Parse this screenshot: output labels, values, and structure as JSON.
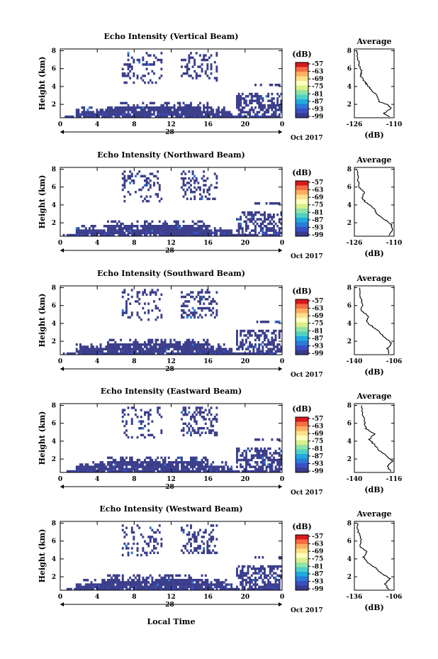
{
  "figure": {
    "x_axis_label": "Local Time",
    "date_label": "Oct 2017",
    "day_label": "28",
    "profile_title": "Average",
    "colorbar_unit": "(dB)",
    "profile_unit": "(dB)",
    "colorbar": {
      "ticks": [
        "-57",
        "-63",
        "-69",
        "-75",
        "-81",
        "-87",
        "-93",
        "-99"
      ],
      "colors": [
        "#d7191c",
        "#f46d43",
        "#fdae61",
        "#fee08b",
        "#ffffbf",
        "#d9ef8b",
        "#91e3a8",
        "#4fd1c5",
        "#21a9e0",
        "#2b7bd6",
        "#3a4fc4",
        "#3a3a8c"
      ]
    },
    "main_color": "#3c3f8c"
  },
  "chart_data": [
    {
      "type": "heatmap",
      "title": "Echo Intensity (Vertical Beam)",
      "ylabel": "Height (km)",
      "x_ticks": [
        "0",
        "4",
        "8",
        "12",
        "16",
        "20",
        "0"
      ],
      "y_ticks": [
        "2",
        "4",
        "6",
        "8"
      ],
      "xlim": [
        0,
        24
      ],
      "ylim": [
        0.5,
        8.2
      ],
      "profile": {
        "xlim": [
          -126,
          -110
        ],
        "x_ticks": [
          "-126",
          "-110"
        ],
        "y_ticks": [
          "2",
          "4",
          "6",
          "8"
        ],
        "points": [
          [
            -112,
            0.6
          ],
          [
            -114,
            1.0
          ],
          [
            -111,
            1.6
          ],
          [
            -113,
            2.0
          ],
          [
            -116,
            2.3
          ],
          [
            -117,
            3.0
          ],
          [
            -119,
            3.6
          ],
          [
            -121,
            4.2
          ],
          [
            -122,
            4.6
          ],
          [
            -123.5,
            5.2
          ],
          [
            -123,
            5.8
          ],
          [
            -124,
            6.3
          ],
          [
            -124.5,
            7.0
          ],
          [
            -125,
            8.2
          ]
        ]
      }
    },
    {
      "type": "heatmap",
      "title": "Echo Intensity (Northward Beam)",
      "ylabel": "Height (km)",
      "x_ticks": [
        "0",
        "4",
        "8",
        "12",
        "16",
        "20",
        "0"
      ],
      "y_ticks": [
        "2",
        "4",
        "6",
        "8"
      ],
      "xlim": [
        0,
        24
      ],
      "ylim": [
        0.5,
        8.2
      ],
      "profile": {
        "xlim": [
          -126,
          -110
        ],
        "x_ticks": [
          "-126",
          "-110"
        ],
        "y_ticks": [
          "2",
          "4",
          "6",
          "8"
        ],
        "points": [
          [
            -112,
            0.6
          ],
          [
            -110.5,
            1.2
          ],
          [
            -111,
            1.8
          ],
          [
            -114,
            2.4
          ],
          [
            -117,
            3.0
          ],
          [
            -118,
            3.6
          ],
          [
            -121,
            4.2
          ],
          [
            -123,
            4.8
          ],
          [
            -122,
            5.4
          ],
          [
            -124,
            6.0
          ],
          [
            -124.5,
            7.0
          ],
          [
            -125,
            8.2
          ]
        ]
      }
    },
    {
      "type": "heatmap",
      "title": "Echo Intensity (Southward Beam)",
      "ylabel": "Height (km)",
      "x_ticks": [
        "0",
        "4",
        "8",
        "12",
        "16",
        "20",
        "0"
      ],
      "y_ticks": [
        "2",
        "4",
        "6",
        "8"
      ],
      "xlim": [
        0,
        24
      ],
      "ylim": [
        0.5,
        8.2
      ],
      "profile": {
        "xlim": [
          -140,
          -106
        ],
        "x_ticks": [
          "-140",
          "-106"
        ],
        "y_ticks": [
          "2",
          "4",
          "6",
          "8"
        ],
        "points": [
          [
            -110,
            0.6
          ],
          [
            -112,
            1.2
          ],
          [
            -108,
            1.8
          ],
          [
            -114,
            2.4
          ],
          [
            -118,
            3.0
          ],
          [
            -124,
            3.6
          ],
          [
            -130,
            4.2
          ],
          [
            -128,
            4.8
          ],
          [
            -134,
            5.4
          ],
          [
            -133,
            6.2
          ],
          [
            -135,
            7.0
          ],
          [
            -136,
            8.2
          ]
        ]
      }
    },
    {
      "type": "heatmap",
      "title": "Echo Intensity (Eastward Beam)",
      "ylabel": "Height (km)",
      "x_ticks": [
        "0",
        "4",
        "8",
        "12",
        "16",
        "20",
        "0"
      ],
      "y_ticks": [
        "2",
        "4",
        "6",
        "8"
      ],
      "xlim": [
        0,
        24
      ],
      "ylim": [
        0.5,
        8.2
      ],
      "profile": {
        "xlim": [
          -140,
          -116
        ],
        "x_ticks": [
          "-140",
          "-116"
        ],
        "y_ticks": [
          "2",
          "4",
          "6",
          "8"
        ],
        "points": [
          [
            -118,
            0.6
          ],
          [
            -120,
            1.2
          ],
          [
            -117,
            1.8
          ],
          [
            -121,
            2.4
          ],
          [
            -125,
            3.0
          ],
          [
            -128,
            3.6
          ],
          [
            -131,
            4.2
          ],
          [
            -128,
            4.8
          ],
          [
            -133,
            5.4
          ],
          [
            -134,
            6.2
          ],
          [
            -135,
            7.0
          ],
          [
            -136,
            8.2
          ]
        ]
      }
    },
    {
      "type": "heatmap",
      "title": "Echo Intensity (Westward Beam)",
      "ylabel": "Height (km)",
      "x_ticks": [
        "0",
        "4",
        "8",
        "12",
        "16",
        "20",
        "0"
      ],
      "y_ticks": [
        "2",
        "4",
        "6",
        "8"
      ],
      "xlim": [
        0,
        24
      ],
      "ylim": [
        0.5,
        8.2
      ],
      "profile": {
        "xlim": [
          -136,
          -106
        ],
        "x_ticks": [
          "-136",
          "-106"
        ],
        "y_ticks": [
          "2",
          "4",
          "6",
          "8"
        ],
        "points": [
          [
            -110,
            0.6
          ],
          [
            -113,
            1.2
          ],
          [
            -109,
            1.8
          ],
          [
            -116,
            2.4
          ],
          [
            -120,
            3.0
          ],
          [
            -126,
            3.6
          ],
          [
            -129,
            4.2
          ],
          [
            -126,
            4.8
          ],
          [
            -132,
            5.4
          ],
          [
            -131,
            6.2
          ],
          [
            -133,
            7.0
          ],
          [
            -134,
            8.2
          ]
        ]
      }
    }
  ]
}
